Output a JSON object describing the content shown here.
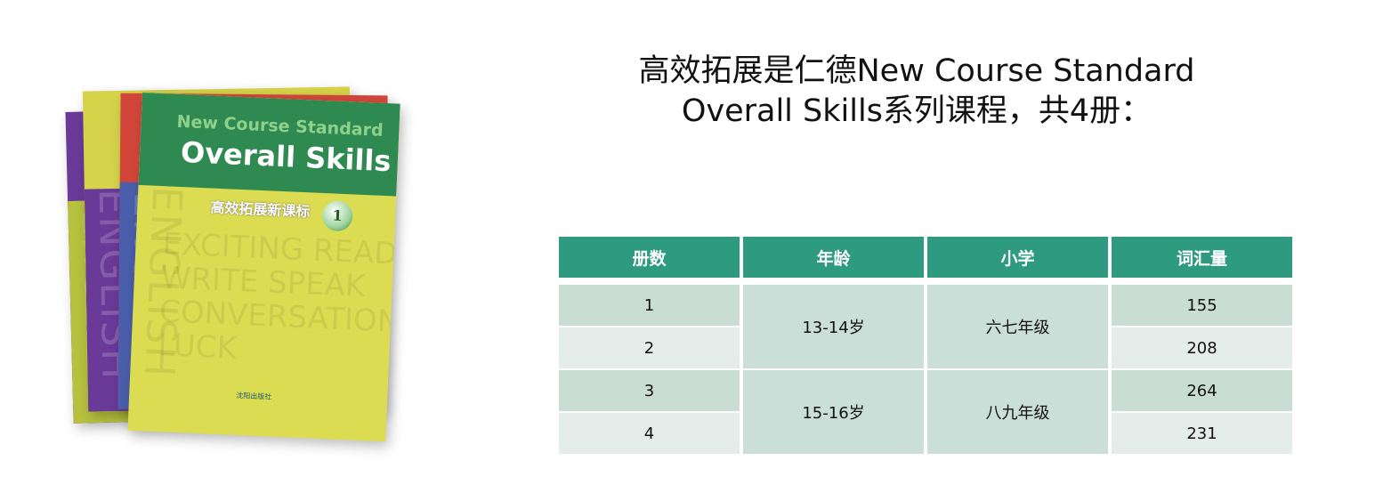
{
  "heading": {
    "line1": "高效拓展是仁德New Course Standard",
    "line2": "Overall Skills系列课程，共4册："
  },
  "book_cover": {
    "series_subtitle": "New Course Standard",
    "series_title": "Overall Skills",
    "chinese_title": "高效拓展新课标",
    "volume": "1",
    "spine_word": "ENGLISH",
    "background_words": "EXCITING READ WRITE SPEAK CONVERSATION LUCK",
    "publisher": "沈阳出版社",
    "colors": {
      "green": "#2f8a52",
      "yellow": "#dcdc52",
      "red": "#d2463a",
      "purple": "#6a3a98",
      "blue": "#4a5fab"
    }
  },
  "table": {
    "headers": [
      "册数",
      "年龄",
      "小学",
      "词汇量"
    ],
    "groups": [
      {
        "age": "13-14岁",
        "grade": "六七年级",
        "rows": [
          {
            "volume": "1",
            "vocab": "155"
          },
          {
            "volume": "2",
            "vocab": "208"
          }
        ]
      },
      {
        "age": "15-16岁",
        "grade": "八九年级",
        "rows": [
          {
            "volume": "3",
            "vocab": "264"
          },
          {
            "volume": "4",
            "vocab": "231"
          }
        ]
      }
    ],
    "header_color": "#2e9a80"
  }
}
